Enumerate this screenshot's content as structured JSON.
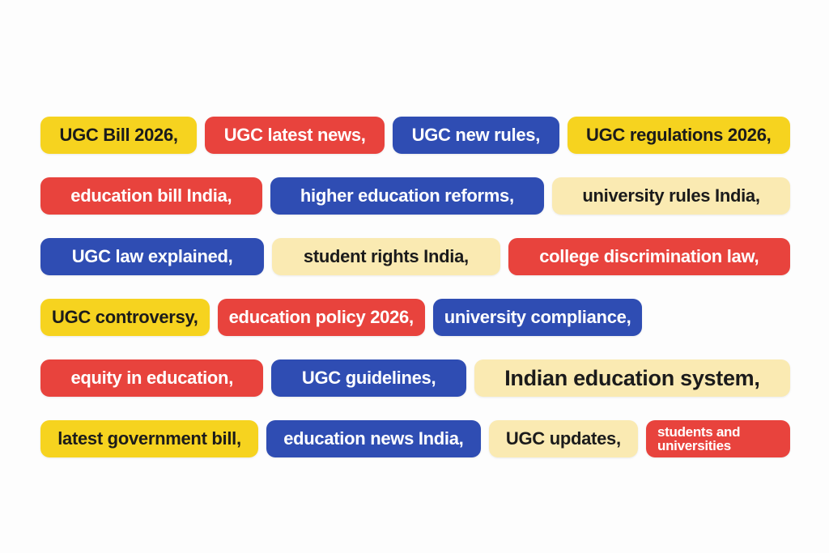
{
  "rows": [
    {
      "tags": [
        {
          "text": "UGC Bill 2026,",
          "color": "#f6d31f"
        },
        {
          "text": "UGC latest news,",
          "color": "#e8433d"
        },
        {
          "text": "UGC new rules,",
          "color": "#2f4db3"
        },
        {
          "text": "UGC regulations 2026,",
          "color": "#f6d31f"
        }
      ]
    },
    {
      "tags": [
        {
          "text": "education bill India,",
          "color": "#e8433d"
        },
        {
          "text": "higher education reforms,",
          "color": "#2f4db3"
        },
        {
          "text": "university rules India,",
          "color": "#faeab2"
        }
      ]
    },
    {
      "tags": [
        {
          "text": "UGC law explained,",
          "color": "#2f4db3"
        },
        {
          "text": "student rights India,",
          "color": "#faeab2"
        },
        {
          "text": "college discrimination law,",
          "color": "#e8433d"
        }
      ]
    },
    {
      "tags": [
        {
          "text": "UGC controversy,",
          "color": "#f6d31f"
        },
        {
          "text": "education policy 2026,",
          "color": "#e8433d"
        },
        {
          "text": "university compliance,",
          "color": "#2f4db3"
        }
      ]
    },
    {
      "tags": [
        {
          "text": "equity in education,",
          "color": "#e8433d"
        },
        {
          "text": "UGC guidelines,",
          "color": "#2f4db3"
        },
        {
          "text": "Indian education system,",
          "color": "#faeab2"
        }
      ]
    },
    {
      "tags": [
        {
          "text": "latest government bill,",
          "color": "#f6d31f"
        },
        {
          "text": "education news India,",
          "color": "#2f4db3"
        },
        {
          "text": "UGC updates,",
          "color": "#faeab2"
        },
        {
          "text": "students and universities",
          "color": "#e8433d"
        }
      ]
    }
  ]
}
